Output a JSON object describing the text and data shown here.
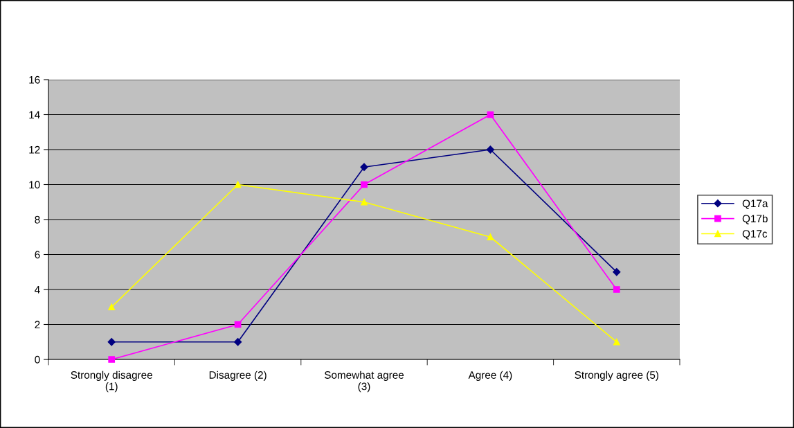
{
  "chart_data": {
    "type": "line",
    "categories": [
      "Strongly disagree\n(1)",
      "Disagree (2)",
      "Somewhat agree\n(3)",
      "Agree (4)",
      "Strongly agree (5)"
    ],
    "series": [
      {
        "name": "Q17a",
        "color": "#000080",
        "marker": "diamond",
        "values": [
          1,
          1,
          11,
          12,
          5
        ]
      },
      {
        "name": "Q17b",
        "color": "#ff00ff",
        "marker": "square",
        "values": [
          0,
          2,
          10,
          14,
          4
        ]
      },
      {
        "name": "Q17c",
        "color": "#ffff00",
        "marker": "triangle",
        "values": [
          3,
          10,
          9,
          7,
          1
        ]
      }
    ],
    "ylim": [
      0,
      16
    ],
    "yticks": [
      0,
      2,
      4,
      6,
      8,
      10,
      12,
      14,
      16
    ],
    "grid": "y",
    "legend": "right",
    "line_style": "solid"
  }
}
